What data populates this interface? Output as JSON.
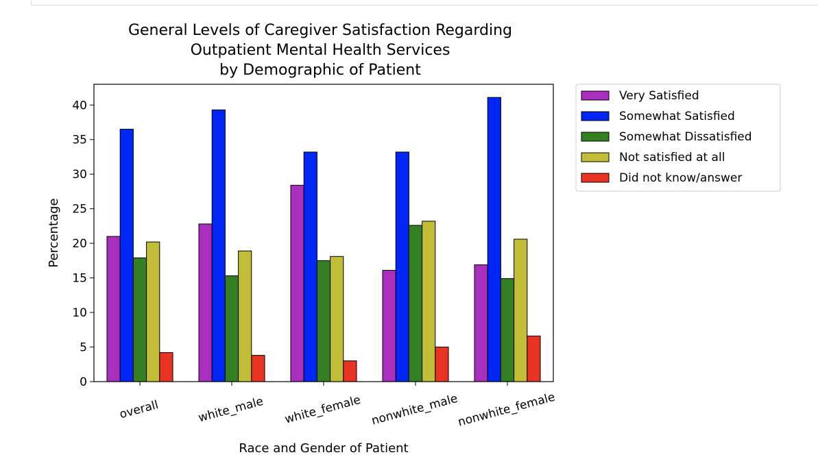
{
  "chart_data": {
    "type": "bar",
    "title": [
      "General Levels of Caregiver Satisfaction Regarding",
      "Outpatient Mental Health Services",
      "by Demographic of Patient"
    ],
    "xlabel": "Race and Gender of Patient",
    "ylabel": "Percentage",
    "categories": [
      "overall",
      "white_male",
      "white_female",
      "nonwhite_male",
      "nonwhite_female"
    ],
    "ylim": [
      0,
      43
    ],
    "yticks": [
      0,
      5,
      10,
      15,
      20,
      25,
      30,
      35,
      40
    ],
    "grid": false,
    "legend_position": "outside-top-right",
    "series": [
      {
        "name": "Very Satisfied",
        "color": "#a82ebd",
        "values": [
          21.0,
          22.8,
          28.4,
          16.1,
          16.9
        ]
      },
      {
        "name": "Somewhat Satisfied",
        "color": "#0026f6",
        "values": [
          36.5,
          39.3,
          33.2,
          33.2,
          41.1
        ]
      },
      {
        "name": "Somewhat Dissatisfied",
        "color": "#347f21",
        "values": [
          17.9,
          15.3,
          17.5,
          22.6,
          14.9
        ]
      },
      {
        "name": "Not satisfied at all",
        "color": "#c2bd38",
        "values": [
          20.2,
          18.9,
          18.1,
          23.2,
          20.6
        ]
      },
      {
        "name": "Did not know/answer",
        "color": "#e93323",
        "values": [
          4.2,
          3.8,
          3.0,
          5.0,
          6.6
        ]
      }
    ]
  }
}
